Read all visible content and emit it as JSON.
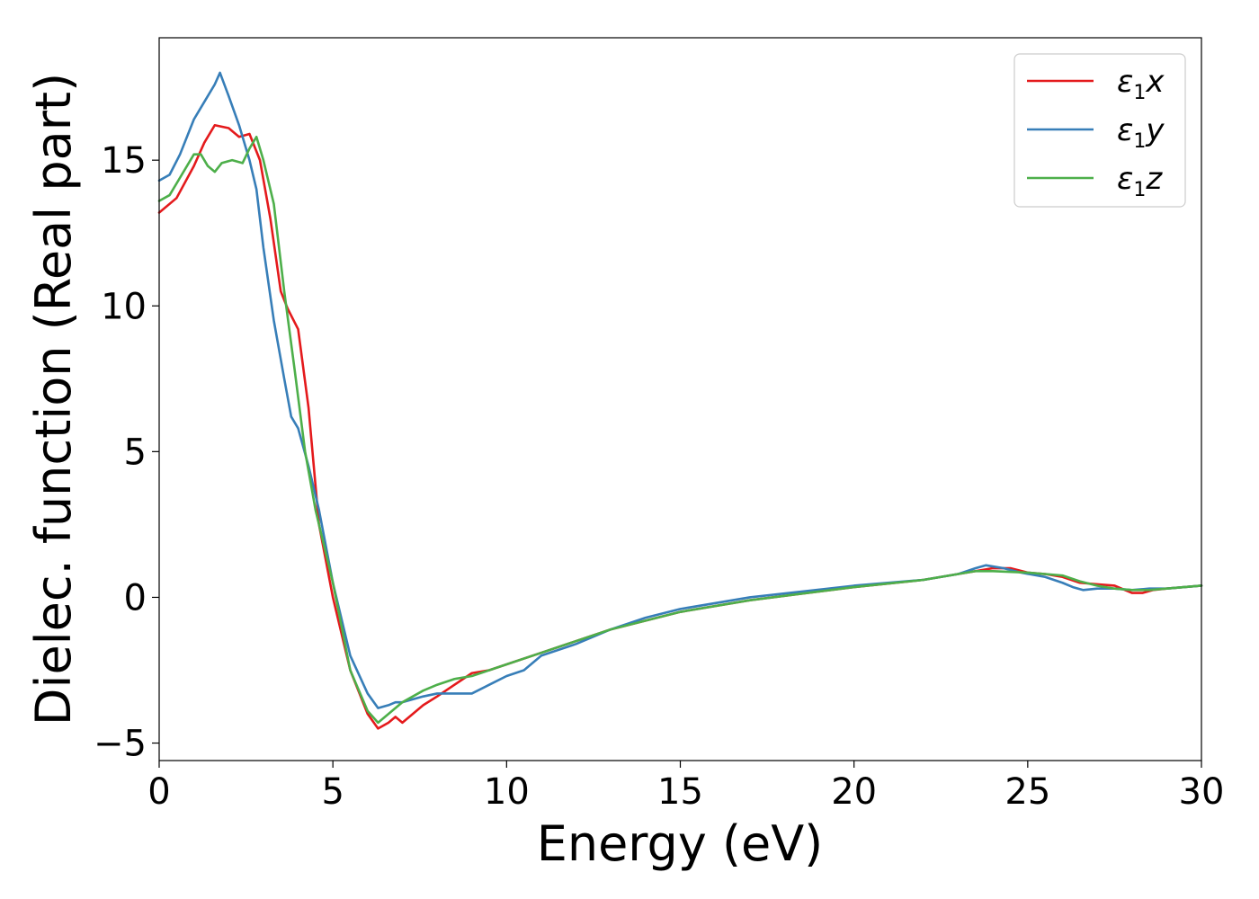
{
  "chart_data": {
    "type": "line",
    "xlabel": "Energy (eV)",
    "ylabel": "Dielec. function (Real part)",
    "xlim": [
      0,
      30
    ],
    "ylim": [
      -5.6,
      19.2
    ],
    "xticks": [
      0,
      5,
      10,
      15,
      20,
      25,
      30
    ],
    "xtick_labels": [
      "0",
      "5",
      "10",
      "15",
      "20",
      "25",
      "30"
    ],
    "yticks": [
      -5,
      0,
      5,
      10,
      15
    ],
    "ytick_labels": [
      "−5",
      "0",
      "5",
      "10",
      "15"
    ],
    "grid": false,
    "legend_position": "top-right",
    "series": [
      {
        "name": "ε1x",
        "legend": {
          "base": "ε",
          "sub": "1",
          "axis": "x"
        },
        "color": "#e41a1c",
        "x": [
          0,
          0.5,
          1.0,
          1.3,
          1.6,
          2.0,
          2.3,
          2.6,
          2.9,
          3.2,
          3.5,
          3.7,
          4.0,
          4.3,
          4.6,
          5.0,
          5.5,
          6.0,
          6.3,
          6.6,
          6.8,
          7.0,
          7.3,
          7.6,
          8.0,
          8.5,
          9.0,
          9.5,
          10.0,
          11.0,
          12.0,
          13.0,
          14.0,
          15.0,
          17.0,
          20.0,
          22.0,
          23.0,
          24.0,
          24.5,
          25.0,
          25.5,
          26.0,
          26.5,
          27.0,
          27.5,
          28.0,
          28.3,
          28.6,
          29.0,
          29.5,
          30.0
        ],
        "values": [
          13.2,
          13.7,
          14.8,
          15.6,
          16.2,
          16.1,
          15.8,
          15.9,
          15.0,
          13.0,
          10.5,
          9.9,
          9.2,
          6.5,
          2.5,
          0.0,
          -2.5,
          -4.0,
          -4.5,
          -4.3,
          -4.1,
          -4.3,
          -4.0,
          -3.7,
          -3.4,
          -3.0,
          -2.6,
          -2.5,
          -2.3,
          -1.9,
          -1.5,
          -1.1,
          -0.8,
          -0.5,
          -0.1,
          0.35,
          0.6,
          0.8,
          1.0,
          1.0,
          0.85,
          0.8,
          0.7,
          0.5,
          0.45,
          0.4,
          0.15,
          0.15,
          0.25,
          0.3,
          0.35,
          0.4
        ]
      },
      {
        "name": "ε1y",
        "legend": {
          "base": "ε",
          "sub": "1",
          "axis": "y"
        },
        "color": "#377eb8",
        "x": [
          0,
          0.3,
          0.6,
          1.0,
          1.3,
          1.6,
          1.75,
          2.0,
          2.3,
          2.6,
          2.8,
          3.0,
          3.3,
          3.6,
          3.8,
          4.0,
          4.3,
          4.6,
          5.0,
          5.5,
          6.0,
          6.3,
          6.6,
          6.8,
          7.0,
          7.3,
          7.6,
          8.0,
          8.5,
          9.0,
          9.5,
          10.0,
          10.5,
          11.0,
          12.0,
          13.0,
          14.0,
          15.0,
          17.0,
          20.0,
          22.0,
          23.0,
          23.5,
          23.8,
          24.3,
          24.8,
          25.5,
          26.0,
          26.3,
          26.6,
          27.0,
          27.5,
          28.0,
          28.5,
          29.0,
          30.0
        ],
        "values": [
          14.3,
          14.5,
          15.2,
          16.4,
          17.0,
          17.6,
          18.0,
          17.2,
          16.2,
          15.0,
          14.0,
          12.0,
          9.5,
          7.5,
          6.2,
          5.8,
          4.5,
          3.0,
          0.5,
          -2.0,
          -3.3,
          -3.8,
          -3.7,
          -3.6,
          -3.6,
          -3.5,
          -3.4,
          -3.3,
          -3.3,
          -3.3,
          -3.0,
          -2.7,
          -2.5,
          -2.0,
          -1.6,
          -1.1,
          -0.7,
          -0.4,
          0.0,
          0.4,
          0.6,
          0.8,
          1.0,
          1.1,
          1.0,
          0.85,
          0.7,
          0.5,
          0.35,
          0.25,
          0.3,
          0.3,
          0.25,
          0.3,
          0.3,
          0.4
        ]
      },
      {
        "name": "ε1z",
        "legend": {
          "base": "ε",
          "sub": "1",
          "axis": "z"
        },
        "color": "#4daf4a",
        "x": [
          0,
          0.3,
          0.6,
          1.0,
          1.2,
          1.4,
          1.6,
          1.8,
          2.1,
          2.4,
          2.6,
          2.8,
          3.0,
          3.3,
          3.6,
          3.9,
          4.2,
          4.5,
          5.0,
          5.5,
          6.0,
          6.3,
          6.6,
          7.0,
          7.3,
          7.6,
          8.0,
          8.5,
          9.0,
          9.5,
          10.0,
          11.0,
          12.0,
          13.0,
          14.0,
          15.0,
          17.0,
          20.0,
          22.0,
          23.0,
          23.5,
          24.0,
          25.0,
          26.0,
          26.5,
          27.0,
          27.5,
          28.0,
          28.5,
          29.0,
          30.0
        ],
        "values": [
          13.6,
          13.8,
          14.4,
          15.2,
          15.2,
          14.8,
          14.6,
          14.9,
          15.0,
          14.9,
          15.4,
          15.8,
          15.0,
          13.5,
          10.5,
          7.8,
          5.0,
          3.0,
          0.5,
          -2.5,
          -3.9,
          -4.3,
          -4.0,
          -3.6,
          -3.4,
          -3.2,
          -3.0,
          -2.8,
          -2.7,
          -2.5,
          -2.3,
          -1.9,
          -1.5,
          -1.1,
          -0.8,
          -0.5,
          -0.1,
          0.35,
          0.6,
          0.8,
          0.9,
          0.9,
          0.85,
          0.75,
          0.55,
          0.4,
          0.3,
          0.25,
          0.25,
          0.3,
          0.4
        ]
      }
    ]
  }
}
